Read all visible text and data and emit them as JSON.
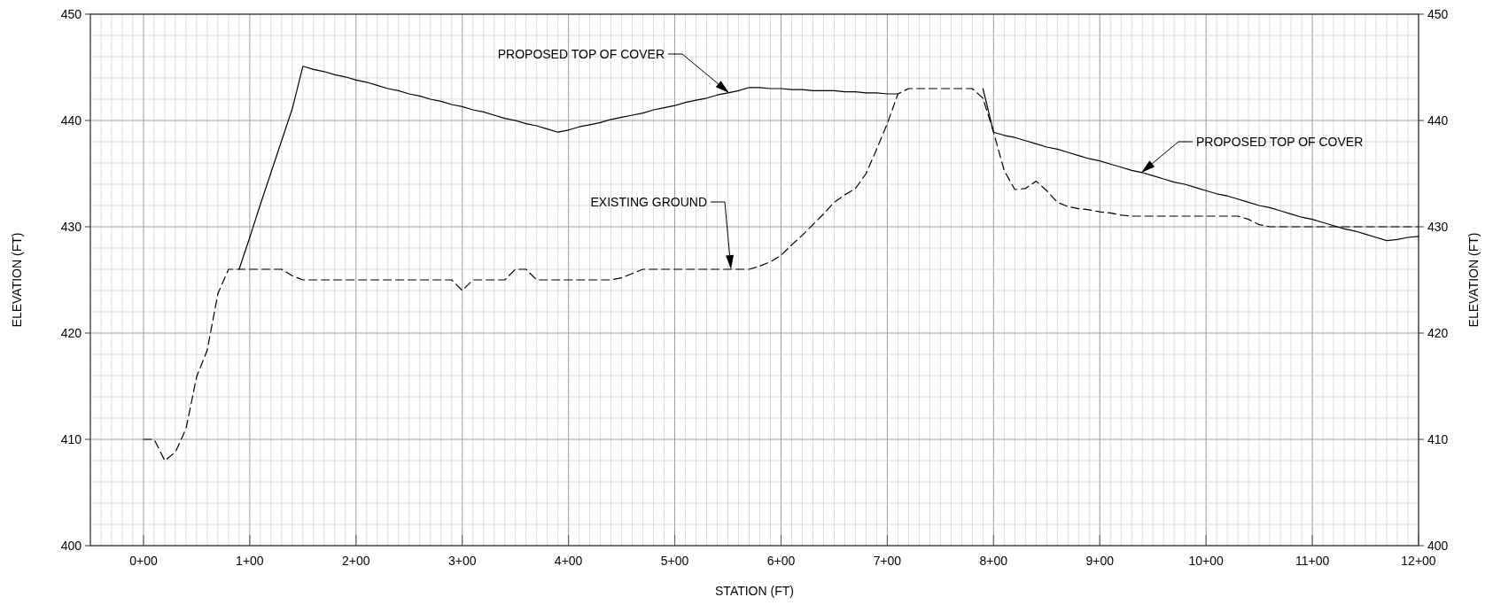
{
  "chart_data": {
    "type": "line",
    "xlabel": "STATION (FT)",
    "ylabel": "ELEVATION (FT)",
    "y2label": "ELEVATION (FT)",
    "categories": [
      null,
      null,
      null,
      null,
      null,
      "0+00",
      null,
      null,
      null,
      null,
      null,
      null,
      null,
      null,
      null,
      "1+00",
      null,
      null,
      null,
      null,
      null,
      null,
      null,
      null,
      null,
      "2+00",
      null,
      null,
      null,
      null,
      null,
      null,
      null,
      null,
      null,
      "3+00",
      null,
      null,
      null,
      null,
      null,
      null,
      null,
      null,
      null,
      "4+00",
      null,
      null,
      null,
      null,
      null,
      null,
      null,
      null,
      null,
      "5+00",
      null,
      null,
      null,
      null,
      null,
      null,
      null,
      null,
      null,
      "6+00",
      null,
      null,
      null,
      null,
      null,
      null,
      null,
      null,
      null,
      "7+00",
      null,
      null,
      null,
      null,
      null,
      null,
      null,
      null,
      null,
      "8+00",
      null,
      null,
      null,
      null,
      null,
      null,
      null,
      null,
      null,
      "9+00",
      null,
      null,
      null,
      null,
      null,
      null,
      null,
      null,
      null,
      "10+00",
      null,
      null,
      null,
      null,
      null,
      null,
      null,
      null,
      null,
      "11+00",
      null,
      null,
      null,
      null,
      null,
      null,
      null,
      null,
      null,
      "12+00"
    ],
    "ylim": [
      400,
      450
    ],
    "yticks": [
      400,
      410,
      420,
      430,
      440,
      450
    ],
    "y2lim": [
      400,
      450
    ],
    "y2ticks": [
      400,
      410,
      420,
      430,
      440,
      450
    ],
    "grid": true,
    "series": [
      {
        "color": "#000000",
        "line_style": "dashed",
        "values": [
          null,
          null,
          null,
          null,
          null,
          410,
          410,
          408,
          408.8,
          411,
          415.9,
          418.4,
          423.7,
          426,
          426,
          426,
          426,
          426,
          426,
          425.4,
          425,
          425,
          425,
          425,
          425,
          425,
          425,
          425,
          425,
          425,
          425,
          425,
          425,
          425,
          425,
          424,
          425,
          425,
          425,
          425,
          426,
          426,
          425,
          425,
          425,
          425,
          425,
          425,
          425,
          425,
          425.2,
          425.6,
          426,
          426,
          426,
          426,
          426,
          426,
          426,
          426,
          426,
          426,
          426,
          426.3,
          426.7,
          427.3,
          428.3,
          429.2,
          430.2,
          431.2,
          432.3,
          433,
          433.6,
          435,
          437.3,
          439.7,
          442.5,
          443,
          443,
          443,
          443,
          443,
          443,
          443,
          442.1,
          438.9,
          435.3,
          433.5,
          433.6,
          434.3,
          433.4,
          432.3,
          431.9,
          431.7,
          431.6,
          431.4,
          431.3,
          431.1,
          431,
          431,
          431,
          431,
          431,
          431,
          431,
          431,
          431,
          431,
          431,
          430.7,
          430.2,
          430,
          430,
          430,
          430,
          430,
          430,
          430,
          430,
          430,
          430,
          430,
          430,
          430,
          430,
          430
        ]
      },
      {
        "color": "#000000",
        "line_style": "solid",
        "values": [
          null,
          null,
          null,
          null,
          null,
          null,
          null,
          null,
          null,
          null,
          null,
          null,
          null,
          null,
          426,
          429,
          432.1,
          435.1,
          438.1,
          441.1,
          445.1,
          444.8,
          444.6,
          444.3,
          444.1,
          443.8,
          443.6,
          443.3,
          443,
          442.8,
          442.5,
          442.3,
          442,
          441.8,
          441.5,
          441.3,
          441,
          440.8,
          440.5,
          440.2,
          440,
          439.7,
          439.5,
          439.2,
          438.9,
          439.1,
          439.4,
          439.6,
          439.8,
          440.1,
          440.3,
          440.5,
          440.7,
          441,
          441.2,
          441.4,
          441.7,
          441.9,
          442.1,
          442.4,
          442.6,
          442.8,
          443.1,
          443.1,
          443,
          443,
          442.9,
          442.9,
          442.8,
          442.8,
          442.8,
          442.7,
          442.7,
          442.6,
          442.6,
          442.5,
          442.5,
          null,
          null,
          null,
          null,
          null,
          null,
          null,
          443,
          438.9,
          438.6,
          438.4,
          438.1,
          437.8,
          437.5,
          437.3,
          437,
          436.7,
          436.4,
          436.2,
          435.9,
          435.6,
          435.3,
          435.1,
          434.8,
          434.5,
          434.2,
          434,
          433.7,
          433.4,
          433.1,
          432.9,
          432.6,
          432.3,
          432,
          431.8,
          431.5,
          431.2,
          430.9,
          430.7,
          430.4,
          430.1,
          429.8,
          429.6,
          429.3,
          429,
          428.7,
          428.8,
          429,
          429.1
        ]
      }
    ],
    "annotations": [
      "PROPOSED TOP OF COVER",
      "EXISTING GROUND",
      "PROPOSED TOP OF COVER"
    ]
  }
}
